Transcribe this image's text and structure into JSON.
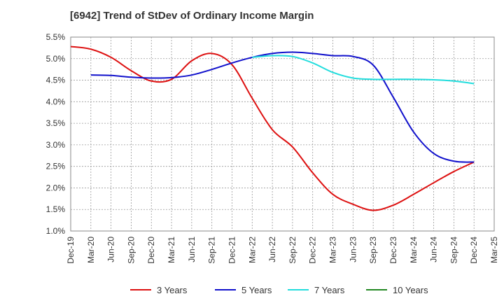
{
  "chart_data": {
    "type": "line",
    "title": "[6942]  Trend of StDev of Ordinary Income Margin",
    "xlabel": "",
    "ylabel": "",
    "categories": [
      "Dec-19",
      "Mar-20",
      "Jun-20",
      "Sep-20",
      "Dec-20",
      "Mar-21",
      "Jun-21",
      "Sep-21",
      "Dec-21",
      "Mar-22",
      "Jun-22",
      "Sep-22",
      "Dec-22",
      "Mar-23",
      "Jun-23",
      "Sep-23",
      "Dec-23",
      "Mar-24",
      "Jun-24",
      "Sep-24",
      "Dec-24",
      "Mar-25"
    ],
    "ylim": [
      1.0,
      5.5
    ],
    "yticks": [
      "1.0%",
      "1.5%",
      "2.0%",
      "2.5%",
      "3.0%",
      "3.5%",
      "4.0%",
      "4.5%",
      "5.0%",
      "5.5%"
    ],
    "grid": true,
    "legend_position": "bottom",
    "series": [
      {
        "name": "3 Years",
        "color": "#dd1111",
        "points": [
          [
            "Dec-19",
            5.28
          ],
          [
            "Mar-20",
            5.22
          ],
          [
            "Jun-20",
            5.03
          ],
          [
            "Sep-20",
            4.72
          ],
          [
            "Dec-20",
            4.48
          ],
          [
            "Mar-21",
            4.52
          ],
          [
            "Jun-21",
            4.95
          ],
          [
            "Sep-21",
            5.12
          ],
          [
            "Dec-21",
            4.86
          ],
          [
            "Mar-22",
            4.08
          ],
          [
            "Jun-22",
            3.35
          ],
          [
            "Sep-22",
            2.95
          ],
          [
            "Dec-22",
            2.35
          ],
          [
            "Mar-23",
            1.85
          ],
          [
            "Jun-23",
            1.62
          ],
          [
            "Sep-23",
            1.48
          ],
          [
            "Dec-23",
            1.6
          ],
          [
            "Mar-24",
            1.85
          ],
          [
            "Jun-24",
            2.12
          ],
          [
            "Sep-24",
            2.38
          ],
          [
            "Dec-24",
            2.6
          ]
        ]
      },
      {
        "name": "5 Years",
        "color": "#1111cc",
        "points": [
          [
            "Mar-20",
            4.62
          ],
          [
            "Jun-20",
            4.61
          ],
          [
            "Sep-20",
            4.57
          ],
          [
            "Dec-20",
            4.55
          ],
          [
            "Mar-21",
            4.56
          ],
          [
            "Jun-21",
            4.62
          ],
          [
            "Sep-21",
            4.75
          ],
          [
            "Dec-21",
            4.9
          ],
          [
            "Mar-22",
            5.03
          ],
          [
            "Jun-22",
            5.12
          ],
          [
            "Sep-22",
            5.15
          ],
          [
            "Dec-22",
            5.12
          ],
          [
            "Mar-23",
            5.07
          ],
          [
            "Jun-23",
            5.05
          ],
          [
            "Sep-23",
            4.85
          ],
          [
            "Dec-23",
            4.1
          ],
          [
            "Mar-24",
            3.3
          ],
          [
            "Jun-24",
            2.8
          ],
          [
            "Sep-24",
            2.62
          ],
          [
            "Dec-24",
            2.6
          ]
        ]
      },
      {
        "name": "7 Years",
        "color": "#22dddd",
        "points": [
          [
            "Mar-22",
            5.03
          ],
          [
            "Jun-22",
            5.07
          ],
          [
            "Sep-22",
            5.05
          ],
          [
            "Dec-22",
            4.9
          ],
          [
            "Mar-23",
            4.68
          ],
          [
            "Jun-23",
            4.55
          ],
          [
            "Sep-23",
            4.52
          ],
          [
            "Dec-23",
            4.52
          ],
          [
            "Mar-24",
            4.52
          ],
          [
            "Jun-24",
            4.51
          ],
          [
            "Sep-24",
            4.48
          ],
          [
            "Dec-24",
            4.42
          ]
        ]
      },
      {
        "name": "10 Years",
        "color": "#228822",
        "points": []
      }
    ]
  }
}
